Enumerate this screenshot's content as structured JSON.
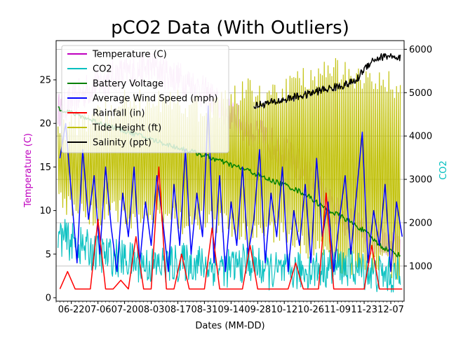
{
  "chart_data": {
    "type": "line",
    "title": "pCO2 Data (With Outliers)",
    "xlabel": "Dates (MM-DD)",
    "ylabel_left": "Temperature (C)",
    "ylabel_right": "CO2",
    "x_type": "date",
    "xlim": [
      "2019-06-14",
      "2019-12-14"
    ],
    "x_ticks": [
      "06-22",
      "07-06",
      "07-20",
      "08-03",
      "08-17",
      "08-31",
      "09-14",
      "09-28",
      "10-12",
      "10-26",
      "11-09",
      "11-23",
      "12-07"
    ],
    "x_tick_dates": [
      "2019-06-22",
      "2019-07-06",
      "2019-07-20",
      "2019-08-03",
      "2019-08-17",
      "2019-08-31",
      "2019-09-14",
      "2019-09-28",
      "2019-10-12",
      "2019-10-26",
      "2019-11-09",
      "2019-11-23",
      "2019-12-07"
    ],
    "ylim_left": [
      -0.4,
      29.5
    ],
    "yticks_left": [
      0,
      5,
      10,
      15,
      20,
      25
    ],
    "ylim_right": [
      190,
      6200
    ],
    "yticks_right": [
      1000,
      2000,
      3000,
      4000,
      5000,
      6000
    ],
    "grid": "horizontal-right-axis",
    "legend_position": "top-left",
    "colors": {
      "temperature": "#bf00bf",
      "co2": "#00bfbf",
      "battery": "#008000",
      "wind": "#0000ff",
      "rain": "#ff0000",
      "tide": "#bfbf00",
      "salinity": "#000000",
      "left_axis_label": "#bf00bf",
      "right_axis_label": "#00bfbf"
    },
    "series": [
      {
        "name": "Temperature (C)",
        "key": "temperature",
        "axis": "left",
        "x": [
          "2019-06-15",
          "2019-06-25",
          "2019-07-05",
          "2019-07-15",
          "2019-07-25",
          "2019-08-04",
          "2019-08-14",
          "2019-08-24",
          "2019-09-03",
          "2019-09-13",
          "2019-09-23",
          "2019-10-03",
          "2019-10-13",
          "2019-10-23",
          "2019-11-02",
          "2019-11-12",
          "2019-11-22",
          "2019-12-02",
          "2019-12-12"
        ],
        "y": [
          21.5,
          23.0,
          24.5,
          25.5,
          26.0,
          26.5,
          25.5,
          24.5,
          23.0,
          21.0,
          19.5,
          18.0,
          16.5,
          14.5,
          11.5,
          9.0,
          7.5,
          6.5,
          6.0
        ]
      },
      {
        "name": "CO2",
        "key": "co2",
        "axis": "right",
        "x": [
          "2019-06-15",
          "2019-06-25",
          "2019-07-05",
          "2019-07-15",
          "2019-07-25",
          "2019-08-04",
          "2019-08-14",
          "2019-08-24",
          "2019-09-03",
          "2019-09-13",
          "2019-09-23",
          "2019-10-03",
          "2019-10-13",
          "2019-10-23",
          "2019-11-02",
          "2019-11-12",
          "2019-11-22",
          "2019-12-02",
          "2019-12-12"
        ],
        "y": [
          1700,
          1500,
          1300,
          1200,
          1100,
          1000,
          1050,
          1100,
          1000,
          950,
          1100,
          900,
          850,
          900,
          950,
          1000,
          900,
          800,
          750
        ]
      },
      {
        "name": "Battery Voltage",
        "key": "battery",
        "axis": "left",
        "x": [
          "2019-06-15",
          "2019-06-25",
          "2019-07-05",
          "2019-07-15",
          "2019-07-25",
          "2019-08-04",
          "2019-08-14",
          "2019-08-24",
          "2019-09-03",
          "2019-09-13",
          "2019-09-23",
          "2019-10-03",
          "2019-10-13",
          "2019-10-23",
          "2019-11-02",
          "2019-11-12",
          "2019-11-22",
          "2019-12-02",
          "2019-12-12"
        ],
        "y": [
          21.8,
          21.0,
          20.2,
          19.5,
          18.8,
          18.1,
          17.4,
          16.8,
          16.1,
          15.3,
          14.6,
          13.6,
          12.9,
          11.9,
          10.3,
          9.2,
          7.8,
          5.9,
          4.8
        ]
      },
      {
        "name": "Average Wind Speed (mph)",
        "key": "wind",
        "axis": "left",
        "x": [
          "2019-06-16",
          "2019-06-19",
          "2019-06-22",
          "2019-06-25",
          "2019-06-28",
          "2019-07-01",
          "2019-07-04",
          "2019-07-07",
          "2019-07-10",
          "2019-07-13",
          "2019-07-16",
          "2019-07-19",
          "2019-07-22",
          "2019-07-25",
          "2019-07-28",
          "2019-07-31",
          "2019-08-03",
          "2019-08-06",
          "2019-08-09",
          "2019-08-12",
          "2019-08-15",
          "2019-08-18",
          "2019-08-21",
          "2019-08-24",
          "2019-08-27",
          "2019-08-30",
          "2019-09-02",
          "2019-09-05",
          "2019-09-08",
          "2019-09-11",
          "2019-09-14",
          "2019-09-17",
          "2019-09-20",
          "2019-09-23",
          "2019-09-26",
          "2019-09-29",
          "2019-10-02",
          "2019-10-05",
          "2019-10-08",
          "2019-10-11",
          "2019-10-14",
          "2019-10-17",
          "2019-10-20",
          "2019-10-23",
          "2019-10-26",
          "2019-10-29",
          "2019-11-01",
          "2019-11-04",
          "2019-11-07",
          "2019-11-10",
          "2019-11-13",
          "2019-11-16",
          "2019-11-19",
          "2019-11-22",
          "2019-11-25",
          "2019-11-28",
          "2019-12-01",
          "2019-12-04",
          "2019-12-07",
          "2019-12-10",
          "2019-12-13"
        ],
        "y": [
          16,
          20,
          12,
          4,
          17,
          9,
          14,
          5,
          15,
          8,
          3,
          12,
          7,
          15,
          4,
          11,
          6,
          14,
          9,
          3,
          13,
          6,
          17,
          5,
          12,
          7,
          22,
          4,
          14,
          3,
          11,
          6,
          15,
          5,
          9,
          17,
          4,
          12,
          7,
          15,
          3,
          10,
          6,
          13,
          4,
          16,
          7,
          11,
          3,
          9,
          14,
          5,
          12,
          19,
          4,
          10,
          6,
          13,
          3,
          11,
          7
        ]
      },
      {
        "name": "Rainfall (in)",
        "key": "rain",
        "axis": "left",
        "x": [
          "2019-06-16",
          "2019-06-20",
          "2019-06-24",
          "2019-06-28",
          "2019-07-02",
          "2019-07-06",
          "2019-07-10",
          "2019-07-14",
          "2019-07-18",
          "2019-07-22",
          "2019-07-26",
          "2019-07-30",
          "2019-08-03",
          "2019-08-07",
          "2019-08-11",
          "2019-08-15",
          "2019-08-19",
          "2019-08-23",
          "2019-08-27",
          "2019-08-31",
          "2019-09-04",
          "2019-09-08",
          "2019-09-12",
          "2019-09-16",
          "2019-09-20",
          "2019-09-24",
          "2019-09-28",
          "2019-10-02",
          "2019-10-06",
          "2019-10-10",
          "2019-10-14",
          "2019-10-18",
          "2019-10-22",
          "2019-10-26",
          "2019-10-30",
          "2019-11-03",
          "2019-11-07",
          "2019-11-11",
          "2019-11-15",
          "2019-11-19",
          "2019-11-23",
          "2019-11-27",
          "2019-12-01",
          "2019-12-05",
          "2019-12-09",
          "2019-12-13"
        ],
        "y": [
          1,
          3,
          1,
          1,
          1,
          9,
          1,
          1,
          2,
          1,
          7,
          1,
          1,
          15,
          1,
          1,
          5,
          1,
          1,
          1,
          8,
          1,
          1,
          1,
          1,
          6,
          1,
          1,
          1,
          1,
          1,
          4,
          1,
          1,
          1,
          12,
          1,
          1,
          1,
          1,
          1,
          6,
          1,
          1,
          1,
          1
        ]
      },
      {
        "name": "Tide Height (ft)",
        "key": "tide",
        "axis": "left",
        "x": [
          "2019-06-15",
          "2019-06-25",
          "2019-07-05",
          "2019-07-15",
          "2019-07-25",
          "2019-08-04",
          "2019-08-14",
          "2019-08-24",
          "2019-09-03",
          "2019-09-13",
          "2019-09-23",
          "2019-10-03",
          "2019-10-13",
          "2019-10-23",
          "2019-11-02",
          "2019-11-12",
          "2019-11-22",
          "2019-12-02",
          "2019-12-12"
        ],
        "y_high": [
          19,
          20,
          21,
          22,
          23,
          22,
          23,
          22,
          21,
          23,
          24,
          23,
          24,
          25,
          26,
          26,
          25,
          25,
          24
        ],
        "y_low": [
          11,
          10,
          9,
          10,
          9,
          10,
          9,
          8,
          9,
          8,
          7,
          8,
          7,
          6,
          5,
          4,
          4,
          4,
          3
        ]
      },
      {
        "name": "Salinity (ppt)",
        "key": "salinity",
        "axis": "left",
        "x": [
          "2019-09-26",
          "2019-10-03",
          "2019-10-10",
          "2019-10-17",
          "2019-10-24",
          "2019-10-31",
          "2019-11-07",
          "2019-11-14",
          "2019-11-19",
          "2019-11-22",
          "2019-11-27",
          "2019-12-02",
          "2019-12-07",
          "2019-12-10",
          "2019-12-12"
        ],
        "y": [
          22.0,
          22.3,
          22.6,
          23.0,
          23.3,
          23.8,
          24.1,
          24.5,
          24.9,
          26.0,
          27.2,
          27.6,
          27.8,
          27.2,
          27.5
        ]
      }
    ]
  }
}
